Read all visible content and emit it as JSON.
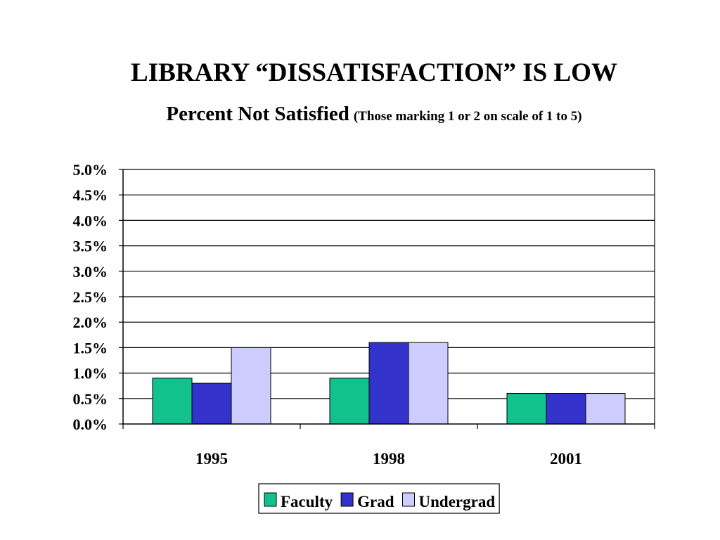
{
  "slide": {
    "title": "LIBRARY “DISSATISFACTION” IS LOW",
    "subtitle": "Percent Not Satisfied",
    "subtitle_note": "(Those marking 1 or 2 on scale of 1 to 5)"
  },
  "chart_data": {
    "type": "bar",
    "categories": [
      "1995",
      "1998",
      "2001"
    ],
    "series": [
      {
        "name": "Faculty",
        "values": [
          0.9,
          0.9,
          0.6
        ],
        "color": "#11C28F"
      },
      {
        "name": "Grad",
        "values": [
          0.8,
          1.6,
          0.6
        ],
        "color": "#3333CC"
      },
      {
        "name": "Undergrad",
        "values": [
          1.5,
          1.6,
          0.6
        ],
        "color": "#CCCCFF"
      }
    ],
    "yticks": [
      "0.0%",
      "0.5%",
      "1.0%",
      "1.5%",
      "2.0%",
      "2.5%",
      "3.0%",
      "3.5%",
      "4.0%",
      "4.5%",
      "5.0%"
    ],
    "ylim": [
      0,
      5
    ],
    "grid": true,
    "legend": "bottom-center"
  }
}
